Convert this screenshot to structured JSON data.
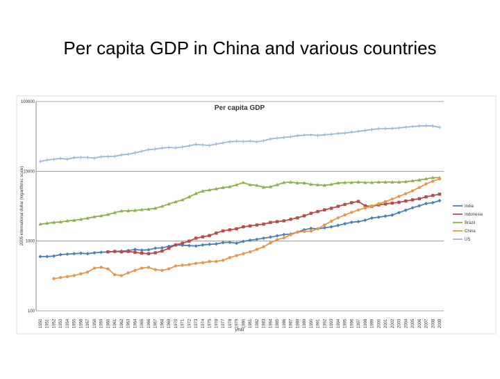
{
  "slide_title": "Per capita GDP in China and various countries",
  "chart_data": {
    "type": "line",
    "title": "Per capita GDP",
    "x_label": "year",
    "y_label": "2005 international dollar (logarithmic scale)",
    "log_scale": true,
    "grid": true,
    "legend": "right",
    "categories": [
      "1950",
      "1951",
      "1952",
      "1953",
      "1954",
      "1955",
      "1956",
      "1957",
      "1958",
      "1959",
      "1960",
      "1961",
      "1962",
      "1963",
      "1964",
      "1965",
      "1966",
      "1967",
      "1968",
      "1969",
      "1970",
      "1971",
      "1972",
      "1973",
      "1974",
      "1975",
      "1976",
      "1977",
      "1978",
      "1979",
      "1980",
      "1981",
      "1982",
      "1983",
      "1984",
      "1985",
      "1986",
      "1987",
      "1988",
      "1989",
      "1990",
      "1991",
      "1992",
      "1993",
      "1994",
      "1995",
      "1996",
      "1997",
      "1998",
      "1999",
      "2000",
      "2001",
      "2002",
      "2003",
      "2004",
      "2005",
      "2006",
      "2007",
      "2008",
      "2009"
    ],
    "ylim": [
      100,
      100000
    ],
    "yticks": [
      100,
      1000,
      10000,
      100000
    ],
    "series": [
      {
        "name": "India",
        "color": "#4a7eb6",
        "marker": "diamond",
        "values": [
          600,
          600,
          610,
          640,
          650,
          660,
          670,
          660,
          680,
          690,
          700,
          710,
          720,
          730,
          760,
          740,
          750,
          790,
          800,
          840,
          880,
          870,
          860,
          850,
          880,
          900,
          910,
          950,
          960,
          930,
          990,
          1030,
          1060,
          1100,
          1140,
          1190,
          1240,
          1260,
          1350,
          1450,
          1520,
          1500,
          1550,
          1600,
          1680,
          1770,
          1860,
          1900,
          1990,
          2140,
          2200,
          2280,
          2360,
          2560,
          2770,
          3000,
          3200,
          3450,
          3550,
          3800
        ]
      },
      {
        "name": "Indonesia",
        "color": "#b94a48",
        "marker": "square",
        "values": [
          null,
          null,
          null,
          null,
          null,
          null,
          null,
          null,
          null,
          null,
          700,
          710,
          700,
          710,
          690,
          670,
          660,
          680,
          720,
          790,
          880,
          930,
          1000,
          1100,
          1150,
          1200,
          1300,
          1400,
          1450,
          1500,
          1600,
          1650,
          1700,
          1750,
          1850,
          1900,
          1950,
          2050,
          2150,
          2300,
          2500,
          2650,
          2800,
          2950,
          3150,
          3350,
          3550,
          3700,
          3200,
          3150,
          3300,
          3400,
          3500,
          3600,
          3750,
          3900,
          4050,
          4300,
          4500,
          4700
        ]
      },
      {
        "name": "Brazil",
        "color": "#8db04c",
        "marker": "triangle",
        "values": [
          1750,
          1800,
          1850,
          1880,
          1950,
          1980,
          2050,
          2130,
          2230,
          2300,
          2400,
          2560,
          2700,
          2720,
          2750,
          2820,
          2860,
          2950,
          3150,
          3400,
          3650,
          3900,
          4300,
          4800,
          5200,
          5400,
          5600,
          5850,
          6000,
          6400,
          6900,
          6400,
          6300,
          5900,
          6000,
          6400,
          6900,
          7000,
          6800,
          6800,
          6500,
          6400,
          6300,
          6500,
          6800,
          6900,
          6900,
          7000,
          6900,
          6900,
          7000,
          7000,
          7000,
          7000,
          7100,
          7300,
          7500,
          7800,
          8100,
          8100
        ]
      },
      {
        "name": "China",
        "color": "#e8974a",
        "marker": "circle",
        "values": [
          null,
          null,
          290,
          300,
          310,
          320,
          340,
          360,
          410,
          420,
          400,
          330,
          320,
          350,
          380,
          410,
          420,
          390,
          380,
          400,
          440,
          450,
          460,
          480,
          490,
          510,
          510,
          530,
          580,
          620,
          660,
          700,
          760,
          830,
          940,
          1050,
          1110,
          1230,
          1340,
          1370,
          1390,
          1500,
          1700,
          1930,
          2150,
          2370,
          2580,
          2790,
          2980,
          3180,
          3420,
          3680,
          3990,
          4370,
          4770,
          5250,
          5850,
          6600,
          7200,
          7800
        ]
      },
      {
        "name": "US",
        "color": "#9bb7d9",
        "marker": "plus",
        "values": [
          13800,
          14500,
          14900,
          15300,
          14900,
          15700,
          15800,
          15800,
          15400,
          16200,
          16300,
          16400,
          17200,
          17600,
          18400,
          19400,
          20400,
          20800,
          21600,
          22000,
          21700,
          22300,
          23200,
          24300,
          23900,
          23500,
          24600,
          25500,
          26600,
          27000,
          26700,
          27100,
          26400,
          27400,
          29100,
          29900,
          30600,
          31300,
          32300,
          33000,
          33200,
          32700,
          33400,
          33900,
          34900,
          35400,
          36300,
          37400,
          38400,
          39700,
          40800,
          40900,
          41100,
          41800,
          42900,
          43800,
          44600,
          45000,
          44600,
          42700
        ]
      }
    ]
  }
}
